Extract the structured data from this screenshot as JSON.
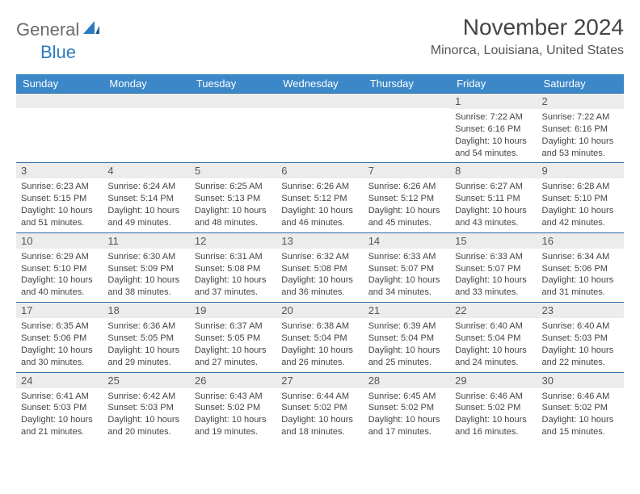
{
  "logo": {
    "word1": "General",
    "word2": "Blue"
  },
  "colors": {
    "header_bg": "#3b87c8",
    "row_border": "#2e6ca3",
    "daynum_bg": "#ececec",
    "logo_gray": "#6b6b6b",
    "logo_blue": "#2c7bbf"
  },
  "title": "November 2024",
  "location": "Minorca, Louisiana, United States",
  "weekdays": [
    "Sunday",
    "Monday",
    "Tuesday",
    "Wednesday",
    "Thursday",
    "Friday",
    "Saturday"
  ],
  "weeks": [
    [
      {
        "n": "",
        "sunrise": "",
        "sunset": "",
        "day": ""
      },
      {
        "n": "",
        "sunrise": "",
        "sunset": "",
        "day": ""
      },
      {
        "n": "",
        "sunrise": "",
        "sunset": "",
        "day": ""
      },
      {
        "n": "",
        "sunrise": "",
        "sunset": "",
        "day": ""
      },
      {
        "n": "",
        "sunrise": "",
        "sunset": "",
        "day": ""
      },
      {
        "n": "1",
        "sunrise": "Sunrise: 7:22 AM",
        "sunset": "Sunset: 6:16 PM",
        "day": "Daylight: 10 hours and 54 minutes."
      },
      {
        "n": "2",
        "sunrise": "Sunrise: 7:22 AM",
        "sunset": "Sunset: 6:16 PM",
        "day": "Daylight: 10 hours and 53 minutes."
      }
    ],
    [
      {
        "n": "3",
        "sunrise": "Sunrise: 6:23 AM",
        "sunset": "Sunset: 5:15 PM",
        "day": "Daylight: 10 hours and 51 minutes."
      },
      {
        "n": "4",
        "sunrise": "Sunrise: 6:24 AM",
        "sunset": "Sunset: 5:14 PM",
        "day": "Daylight: 10 hours and 49 minutes."
      },
      {
        "n": "5",
        "sunrise": "Sunrise: 6:25 AM",
        "sunset": "Sunset: 5:13 PM",
        "day": "Daylight: 10 hours and 48 minutes."
      },
      {
        "n": "6",
        "sunrise": "Sunrise: 6:26 AM",
        "sunset": "Sunset: 5:12 PM",
        "day": "Daylight: 10 hours and 46 minutes."
      },
      {
        "n": "7",
        "sunrise": "Sunrise: 6:26 AM",
        "sunset": "Sunset: 5:12 PM",
        "day": "Daylight: 10 hours and 45 minutes."
      },
      {
        "n": "8",
        "sunrise": "Sunrise: 6:27 AM",
        "sunset": "Sunset: 5:11 PM",
        "day": "Daylight: 10 hours and 43 minutes."
      },
      {
        "n": "9",
        "sunrise": "Sunrise: 6:28 AM",
        "sunset": "Sunset: 5:10 PM",
        "day": "Daylight: 10 hours and 42 minutes."
      }
    ],
    [
      {
        "n": "10",
        "sunrise": "Sunrise: 6:29 AM",
        "sunset": "Sunset: 5:10 PM",
        "day": "Daylight: 10 hours and 40 minutes."
      },
      {
        "n": "11",
        "sunrise": "Sunrise: 6:30 AM",
        "sunset": "Sunset: 5:09 PM",
        "day": "Daylight: 10 hours and 38 minutes."
      },
      {
        "n": "12",
        "sunrise": "Sunrise: 6:31 AM",
        "sunset": "Sunset: 5:08 PM",
        "day": "Daylight: 10 hours and 37 minutes."
      },
      {
        "n": "13",
        "sunrise": "Sunrise: 6:32 AM",
        "sunset": "Sunset: 5:08 PM",
        "day": "Daylight: 10 hours and 36 minutes."
      },
      {
        "n": "14",
        "sunrise": "Sunrise: 6:33 AM",
        "sunset": "Sunset: 5:07 PM",
        "day": "Daylight: 10 hours and 34 minutes."
      },
      {
        "n": "15",
        "sunrise": "Sunrise: 6:33 AM",
        "sunset": "Sunset: 5:07 PM",
        "day": "Daylight: 10 hours and 33 minutes."
      },
      {
        "n": "16",
        "sunrise": "Sunrise: 6:34 AM",
        "sunset": "Sunset: 5:06 PM",
        "day": "Daylight: 10 hours and 31 minutes."
      }
    ],
    [
      {
        "n": "17",
        "sunrise": "Sunrise: 6:35 AM",
        "sunset": "Sunset: 5:06 PM",
        "day": "Daylight: 10 hours and 30 minutes."
      },
      {
        "n": "18",
        "sunrise": "Sunrise: 6:36 AM",
        "sunset": "Sunset: 5:05 PM",
        "day": "Daylight: 10 hours and 29 minutes."
      },
      {
        "n": "19",
        "sunrise": "Sunrise: 6:37 AM",
        "sunset": "Sunset: 5:05 PM",
        "day": "Daylight: 10 hours and 27 minutes."
      },
      {
        "n": "20",
        "sunrise": "Sunrise: 6:38 AM",
        "sunset": "Sunset: 5:04 PM",
        "day": "Daylight: 10 hours and 26 minutes."
      },
      {
        "n": "21",
        "sunrise": "Sunrise: 6:39 AM",
        "sunset": "Sunset: 5:04 PM",
        "day": "Daylight: 10 hours and 25 minutes."
      },
      {
        "n": "22",
        "sunrise": "Sunrise: 6:40 AM",
        "sunset": "Sunset: 5:04 PM",
        "day": "Daylight: 10 hours and 24 minutes."
      },
      {
        "n": "23",
        "sunrise": "Sunrise: 6:40 AM",
        "sunset": "Sunset: 5:03 PM",
        "day": "Daylight: 10 hours and 22 minutes."
      }
    ],
    [
      {
        "n": "24",
        "sunrise": "Sunrise: 6:41 AM",
        "sunset": "Sunset: 5:03 PM",
        "day": "Daylight: 10 hours and 21 minutes."
      },
      {
        "n": "25",
        "sunrise": "Sunrise: 6:42 AM",
        "sunset": "Sunset: 5:03 PM",
        "day": "Daylight: 10 hours and 20 minutes."
      },
      {
        "n": "26",
        "sunrise": "Sunrise: 6:43 AM",
        "sunset": "Sunset: 5:02 PM",
        "day": "Daylight: 10 hours and 19 minutes."
      },
      {
        "n": "27",
        "sunrise": "Sunrise: 6:44 AM",
        "sunset": "Sunset: 5:02 PM",
        "day": "Daylight: 10 hours and 18 minutes."
      },
      {
        "n": "28",
        "sunrise": "Sunrise: 6:45 AM",
        "sunset": "Sunset: 5:02 PM",
        "day": "Daylight: 10 hours and 17 minutes."
      },
      {
        "n": "29",
        "sunrise": "Sunrise: 6:46 AM",
        "sunset": "Sunset: 5:02 PM",
        "day": "Daylight: 10 hours and 16 minutes."
      },
      {
        "n": "30",
        "sunrise": "Sunrise: 6:46 AM",
        "sunset": "Sunset: 5:02 PM",
        "day": "Daylight: 10 hours and 15 minutes."
      }
    ]
  ]
}
